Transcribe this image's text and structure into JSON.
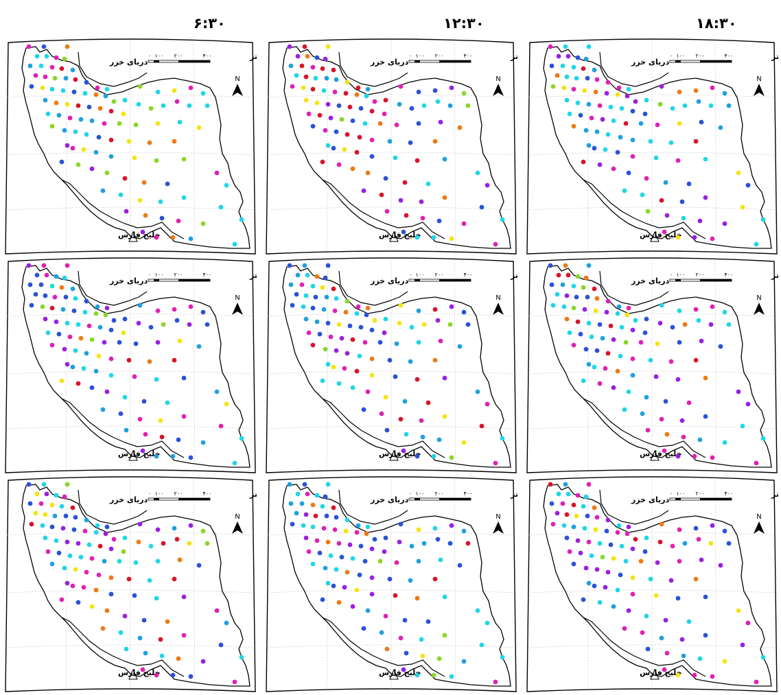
{
  "columns": [
    "۶:۳۰",
    "۱۲:۳۰",
    "۱۸:۳۰"
  ],
  "map_labels": {
    "sea_north": "دریای خزر",
    "sea_south": "خلیج فارس",
    "scale_unit": "کیلومتر",
    "scale_ticks": [
      "۴۰۰",
      "۲۰۰",
      "۱۰۰",
      "۰"
    ],
    "north": "N"
  },
  "colors": {
    "map_outline": "#000000",
    "graticule": "#c0c0c0",
    "dot_palette": [
      "#1fd6e8",
      "#e020b4",
      "#9a20e0",
      "#2a52d8",
      "#1ea0e0",
      "#d8142a",
      "#ee7a14",
      "#f4e414",
      "#8ad62a"
    ]
  },
  "panels": [
    {
      "row": 1,
      "column": "۶:۳۰"
    },
    {
      "row": 1,
      "column": "۱۲:۳۰"
    },
    {
      "row": 1,
      "column": "۱۸:۳۰"
    },
    {
      "row": 2,
      "column": "۶:۳۰"
    },
    {
      "row": 2,
      "column": "۱۲:۳۰"
    },
    {
      "row": 2,
      "column": "۱۸:۳۰"
    },
    {
      "row": 3,
      "column": "۶:۳۰"
    },
    {
      "row": 3,
      "column": "۱۲:۳۰"
    },
    {
      "row": 3,
      "column": "۱۸:۳۰"
    }
  ]
}
